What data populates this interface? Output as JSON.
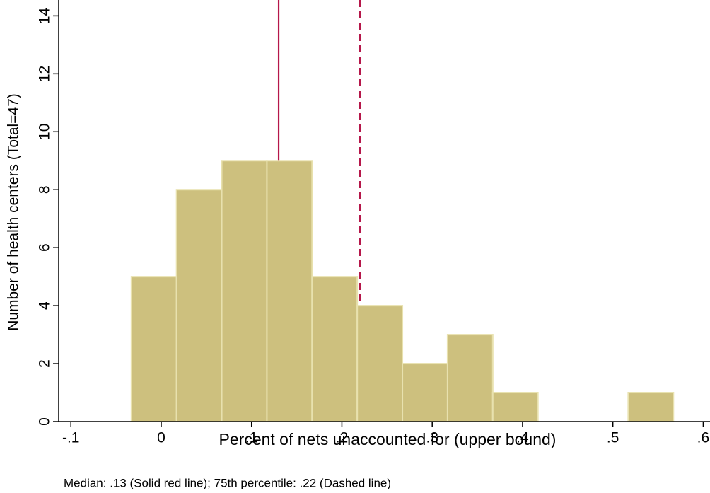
{
  "chart_data": {
    "type": "histogram",
    "xlabel": "Percent of nets unaccounted for (upper bound)",
    "ylabel": "Number of health centers (Total=47)",
    "caption": "Median: .13 (Solid red line); 75th percentile: .22 (Dashed line)",
    "bins": [
      -0.033,
      0.017,
      0.067,
      0.117,
      0.167,
      0.217,
      0.267,
      0.317,
      0.367,
      0.417,
      0.467,
      0.517,
      0.567
    ],
    "values": [
      5,
      8,
      9,
      9,
      5,
      4,
      2,
      3,
      1,
      0,
      0,
      1
    ],
    "color": "#cdc07e",
    "edgecolor": "#e8e1ae",
    "vlines": [
      {
        "value": 0.13,
        "style": "solid"
      },
      {
        "value": 0.22,
        "style": "dashed"
      }
    ],
    "vline_color": "#b5174a",
    "xlim": [
      -0.1135,
      0.6075
    ],
    "xticks": [
      {
        "value": -0.1,
        "label": "-.1"
      },
      0,
      {
        "value": 0.1,
        "label": ".1"
      },
      {
        "value": 0.2,
        "label": ".2"
      },
      {
        "value": 0.3,
        "label": ".3"
      },
      {
        "value": 0.4,
        "label": ".4"
      },
      {
        "value": 0.5,
        "label": ".5"
      },
      {
        "value": 0.6,
        "label": ".6"
      }
    ],
    "ylim": [
      0,
      14.4
    ],
    "yticks": [
      0,
      2,
      4,
      6,
      8,
      10,
      12,
      14
    ]
  }
}
